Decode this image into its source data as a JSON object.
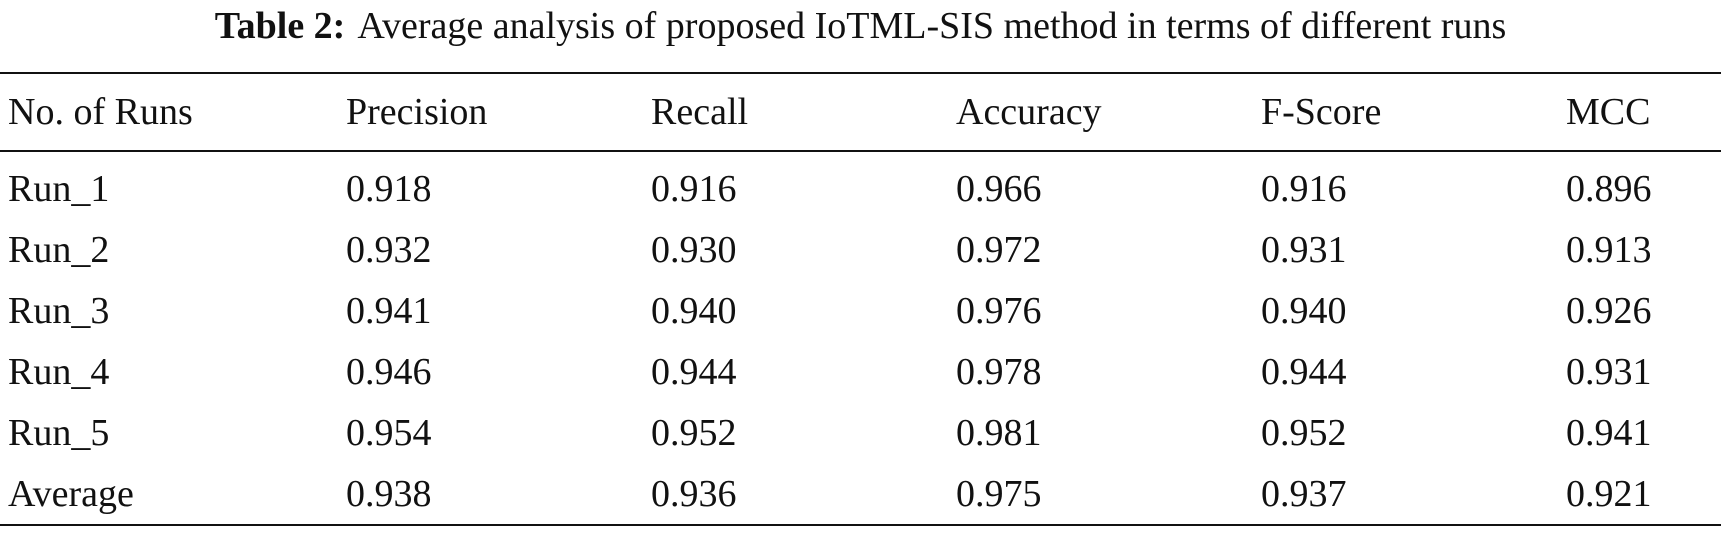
{
  "caption": {
    "label": "Table 2:",
    "text": "Average analysis of proposed IoTML-SIS method in terms of different runs"
  },
  "table": {
    "headers": [
      "No. of Runs",
      "Precision",
      "Recall",
      "Accuracy",
      "F-Score",
      "MCC"
    ],
    "rows": [
      [
        "Run_1",
        "0.918",
        "0.916",
        "0.966",
        "0.916",
        "0.896"
      ],
      [
        "Run_2",
        "0.932",
        "0.930",
        "0.972",
        "0.931",
        "0.913"
      ],
      [
        "Run_3",
        "0.941",
        "0.940",
        "0.976",
        "0.940",
        "0.926"
      ],
      [
        "Run_4",
        "0.946",
        "0.944",
        "0.978",
        "0.944",
        "0.931"
      ],
      [
        "Run_5",
        "0.954",
        "0.952",
        "0.981",
        "0.952",
        "0.941"
      ],
      [
        "Average",
        "0.938",
        "0.936",
        "0.975",
        "0.937",
        "0.921"
      ]
    ]
  }
}
